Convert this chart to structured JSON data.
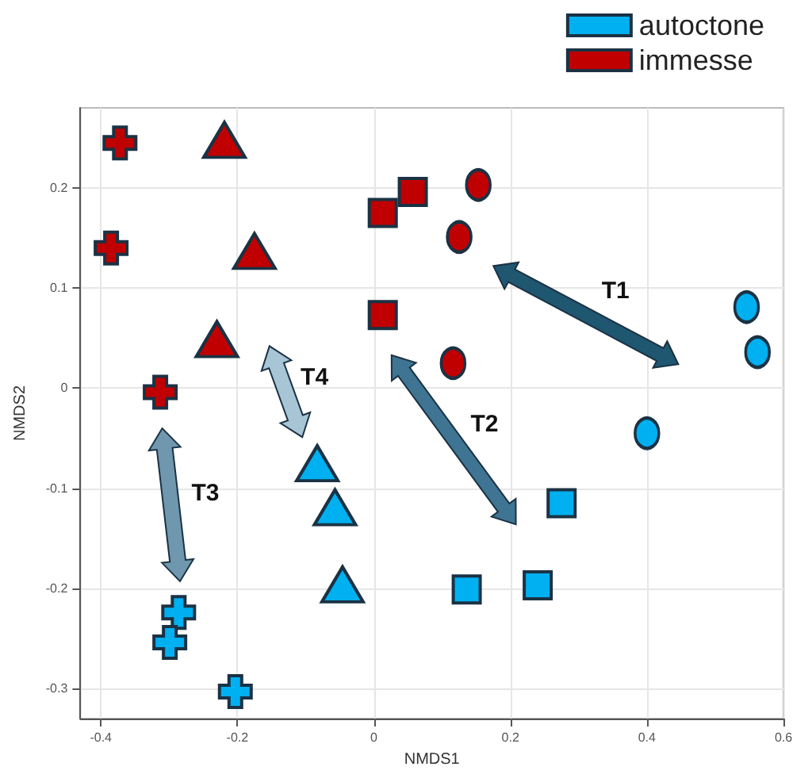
{
  "chart_data": {
    "type": "scatter",
    "xlabel": "NMDS1",
    "ylabel": "NMDS2",
    "xlim": [
      -0.43,
      0.6
    ],
    "ylim": [
      -0.33,
      0.28
    ],
    "xticks": [
      -0.4,
      -0.2,
      0.0,
      0.2,
      0.4,
      0.6
    ],
    "yticks": [
      -0.3,
      -0.2,
      -0.1,
      0.0,
      0.1,
      0.2
    ],
    "grid": true,
    "legend": "top right",
    "annotations": [
      "T1",
      "T2",
      "T3",
      "T4"
    ],
    "series": [
      {
        "name": "autoctone",
        "color": "#00b0f0",
        "marker": [
          "circle",
          "circle",
          "circle",
          "square",
          "square",
          "square",
          "triangle",
          "triangle",
          "triangle",
          "cross",
          "cross",
          "cross"
        ],
        "x": [
          0.546,
          0.562,
          0.4,
          0.275,
          0.24,
          0.136,
          -0.083,
          -0.057,
          -0.046,
          -0.286,
          -0.299,
          -0.203
        ],
        "values": [
          0.081,
          0.036,
          -0.045,
          -0.115,
          -0.197,
          -0.201,
          -0.075,
          -0.119,
          -0.196,
          -0.224,
          -0.254,
          -0.303
        ]
      },
      {
        "name": "immesse",
        "color": "#c00000",
        "marker": [
          "circle",
          "circle",
          "circle",
          "square",
          "square",
          "square",
          "triangle",
          "triangle",
          "triangle",
          "cross",
          "cross",
          "cross"
        ],
        "x": [
          0.153,
          0.125,
          0.116,
          0.013,
          0.057,
          0.013,
          -0.219,
          -0.175,
          -0.23,
          -0.372,
          -0.385,
          -0.313
        ],
        "values": [
          0.203,
          0.151,
          0.025,
          0.175,
          0.196,
          0.073,
          0.248,
          0.137,
          0.049,
          0.245,
          0.14,
          -0.004
        ]
      }
    ]
  }
}
